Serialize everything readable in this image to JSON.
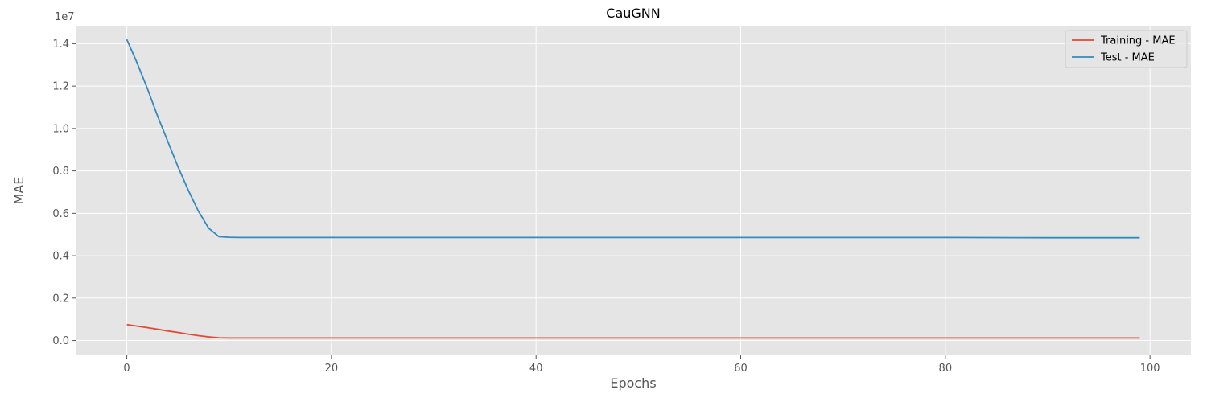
{
  "chart_data": {
    "type": "line",
    "title": "CauGNN",
    "xlabel": "Epochs",
    "ylabel": "MAE",
    "y_offset_label": "1e7",
    "xlim": [
      -5,
      104
    ],
    "ylim": [
      -0.07,
      1.485
    ],
    "xticks": [
      0,
      20,
      40,
      60,
      80,
      100
    ],
    "xtick_labels": [
      "0",
      "20",
      "40",
      "60",
      "80",
      "100"
    ],
    "yticks": [
      0.0,
      0.2,
      0.4,
      0.6,
      0.8,
      1.0,
      1.2,
      1.4
    ],
    "ytick_labels": [
      "0.0",
      "0.2",
      "0.4",
      "0.6",
      "0.8",
      "1.0",
      "1.2",
      "1.4"
    ],
    "grid": true,
    "legend_position": "top-right",
    "series": [
      {
        "name": "Training - MAE",
        "color": "#E24A33",
        "points": [
          [
            0,
            0.075
          ],
          [
            1,
            0.068
          ],
          [
            2,
            0.061
          ],
          [
            3,
            0.053
          ],
          [
            4,
            0.045
          ],
          [
            5,
            0.038
          ],
          [
            6,
            0.03
          ],
          [
            7,
            0.023
          ],
          [
            8,
            0.017
          ],
          [
            9,
            0.013
          ],
          [
            10,
            0.012
          ],
          [
            20,
            0.012
          ],
          [
            30,
            0.012
          ],
          [
            40,
            0.012
          ],
          [
            50,
            0.012
          ],
          [
            60,
            0.012
          ],
          [
            70,
            0.012
          ],
          [
            80,
            0.012
          ],
          [
            90,
            0.012
          ],
          [
            99,
            0.012
          ]
        ]
      },
      {
        "name": "Test - MAE",
        "color": "#348ABD",
        "points": [
          [
            0,
            1.42
          ],
          [
            1,
            1.31
          ],
          [
            2,
            1.19
          ],
          [
            3,
            1.06
          ],
          [
            4,
            0.94
          ],
          [
            5,
            0.82
          ],
          [
            6,
            0.71
          ],
          [
            7,
            0.61
          ],
          [
            8,
            0.53
          ],
          [
            9,
            0.49
          ],
          [
            10,
            0.487
          ],
          [
            11,
            0.486
          ],
          [
            20,
            0.486
          ],
          [
            30,
            0.486
          ],
          [
            40,
            0.486
          ],
          [
            50,
            0.486
          ],
          [
            60,
            0.486
          ],
          [
            70,
            0.486
          ],
          [
            80,
            0.486
          ],
          [
            90,
            0.485
          ],
          [
            99,
            0.485
          ]
        ]
      }
    ]
  }
}
